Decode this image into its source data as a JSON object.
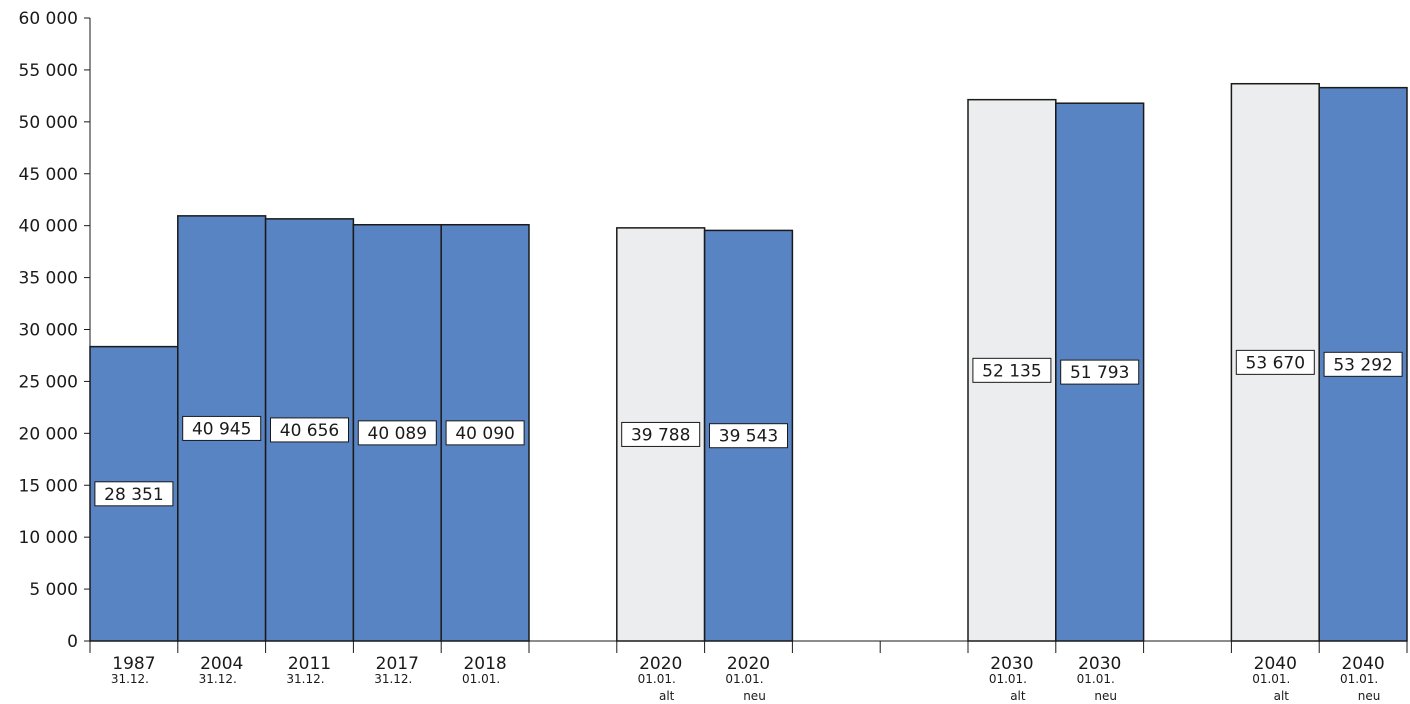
{
  "chart_data": {
    "type": "bar",
    "ylim": [
      0,
      60000
    ],
    "yticks": [
      0,
      5000,
      10000,
      15000,
      20000,
      25000,
      30000,
      35000,
      40000,
      45000,
      50000,
      55000,
      60000
    ],
    "ytick_labels": [
      "0",
      "5 000",
      "10 000",
      "15 000",
      "20 000",
      "25 000",
      "30 000",
      "35 000",
      "40 000",
      "45 000",
      "50 000",
      "55 000",
      "60 000"
    ],
    "grid": false,
    "colors": {
      "current": "#5984C3",
      "alt": "#ECEDEF",
      "stroke": "#1A1A1A"
    },
    "bars": [
      {
        "year": "1987",
        "date": "31.12.",
        "variant": "",
        "value": 28351,
        "label": "28 351",
        "style": "current"
      },
      {
        "year": "2004",
        "date": "31.12.",
        "variant": "",
        "value": 40945,
        "label": "40 945",
        "style": "current"
      },
      {
        "year": "2011",
        "date": "31.12.",
        "variant": "",
        "value": 40656,
        "label": "40 656",
        "style": "current"
      },
      {
        "year": "2017",
        "date": "31.12.",
        "variant": "",
        "value": 40089,
        "label": "40 089",
        "style": "current"
      },
      {
        "year": "2018",
        "date": "01.01.",
        "variant": "",
        "value": 40090,
        "label": "40 090",
        "style": "current"
      },
      {
        "year": "2020",
        "date": "01.01.",
        "variant": "alt",
        "value": 39788,
        "label": "39 788",
        "style": "alt"
      },
      {
        "year": "2020",
        "date": "01.01.",
        "variant": "neu",
        "value": 39543,
        "label": "39 543",
        "style": "current"
      },
      {
        "year": "2030",
        "date": "01.01.",
        "variant": "alt",
        "value": 52135,
        "label": "52 135",
        "style": "alt"
      },
      {
        "year": "2030",
        "date": "01.01.",
        "variant": "neu",
        "value": 51793,
        "label": "51 793",
        "style": "current"
      },
      {
        "year": "2040",
        "date": "01.01.",
        "variant": "alt",
        "value": 53670,
        "label": "53 670",
        "style": "alt"
      },
      {
        "year": "2040",
        "date": "01.01.",
        "variant": "neu",
        "value": 53292,
        "label": "53 292",
        "style": "current"
      }
    ]
  }
}
